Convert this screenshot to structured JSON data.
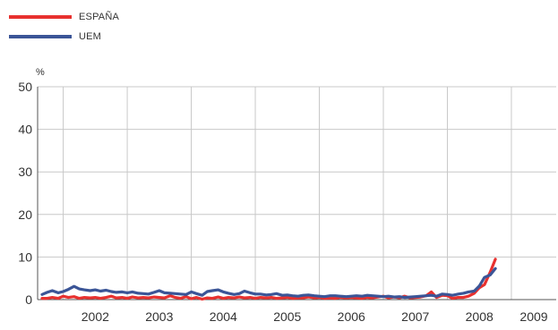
{
  "chart_data": {
    "type": "line",
    "title": "",
    "xlabel": "",
    "ylabel": "%",
    "ylim": [
      0,
      50
    ],
    "yticks": [
      "0",
      "10",
      "20",
      "30",
      "40",
      "50"
    ],
    "xlim": [
      2001.6,
      2009.7
    ],
    "xticks": [
      "2002",
      "2003",
      "2004",
      "2005",
      "2006",
      "2007",
      "2008",
      "2009"
    ],
    "grid": true,
    "legend_position": "top-left",
    "series": [
      {
        "name": "ESPAÑA",
        "color": "#e8312f",
        "x": [
          2001.67,
          2001.75,
          2001.83,
          2001.92,
          2002.0,
          2002.08,
          2002.17,
          2002.25,
          2002.33,
          2002.42,
          2002.5,
          2002.58,
          2002.67,
          2002.75,
          2002.83,
          2002.92,
          2003.0,
          2003.08,
          2003.17,
          2003.25,
          2003.33,
          2003.42,
          2003.5,
          2003.58,
          2003.67,
          2003.75,
          2003.83,
          2003.92,
          2004.0,
          2004.08,
          2004.17,
          2004.25,
          2004.33,
          2004.42,
          2004.5,
          2004.58,
          2004.67,
          2004.75,
          2004.83,
          2004.92,
          2005.0,
          2005.08,
          2005.17,
          2005.25,
          2005.33,
          2005.42,
          2005.5,
          2005.58,
          2005.67,
          2005.75,
          2005.83,
          2005.92,
          2006.0,
          2006.08,
          2006.17,
          2006.25,
          2006.33,
          2006.42,
          2006.5,
          2006.58,
          2006.67,
          2006.75,
          2006.83,
          2006.92,
          2007.0,
          2007.08,
          2007.17,
          2007.25,
          2007.33,
          2007.42,
          2007.5,
          2007.58,
          2007.67,
          2007.75,
          2007.83,
          2007.92,
          2008.0,
          2008.08,
          2008.17,
          2008.25,
          2008.33,
          2008.42,
          2008.5,
          2008.58,
          2008.67,
          2008.75
        ],
        "values": [
          0.3,
          0.3,
          0.5,
          0.3,
          0.8,
          0.5,
          0.7,
          0.3,
          0.5,
          0.4,
          0.5,
          0.3,
          0.5,
          0.8,
          0.4,
          0.5,
          0.3,
          0.6,
          0.4,
          0.5,
          0.4,
          0.6,
          0.5,
          0.4,
          0.9,
          0.5,
          0.3,
          0.7,
          0.2,
          0.5,
          0.1,
          0.4,
          0.3,
          0.6,
          0.3,
          0.5,
          0.4,
          0.6,
          0.4,
          0.5,
          0.3,
          0.5,
          0.4,
          0.5,
          0.3,
          0.4,
          0.5,
          0.3,
          0.4,
          0.4,
          0.6,
          0.4,
          0.5,
          0.3,
          0.4,
          0.3,
          0.5,
          0.4,
          0.5,
          0.4,
          0.3,
          0.5,
          0.4,
          0.6,
          0.8,
          0.4,
          0.6,
          0.4,
          0.8,
          0.4,
          0.5,
          0.6,
          0.9,
          1.8,
          0.5,
          1.0,
          0.9,
          0.3,
          0.5,
          0.5,
          0.8,
          1.5,
          2.8,
          3.5,
          6.5,
          9.5
        ]
      },
      {
        "name": "UEM",
        "color": "#3b5597",
        "x": [
          2001.67,
          2001.75,
          2001.83,
          2001.92,
          2002.0,
          2002.08,
          2002.17,
          2002.25,
          2002.33,
          2002.42,
          2002.5,
          2002.58,
          2002.67,
          2002.75,
          2002.83,
          2002.92,
          2003.0,
          2003.08,
          2003.17,
          2003.25,
          2003.33,
          2003.42,
          2003.5,
          2003.58,
          2003.67,
          2003.75,
          2003.83,
          2003.92,
          2004.0,
          2004.08,
          2004.17,
          2004.25,
          2004.33,
          2004.42,
          2004.5,
          2004.58,
          2004.67,
          2004.75,
          2004.83,
          2004.92,
          2005.0,
          2005.08,
          2005.17,
          2005.25,
          2005.33,
          2005.42,
          2005.5,
          2005.58,
          2005.67,
          2005.75,
          2005.83,
          2005.92,
          2006.0,
          2006.08,
          2006.17,
          2006.25,
          2006.33,
          2006.42,
          2006.5,
          2006.58,
          2006.67,
          2006.75,
          2006.83,
          2006.92,
          2007.0,
          2007.08,
          2007.17,
          2007.25,
          2007.33,
          2007.42,
          2007.5,
          2007.58,
          2007.67,
          2007.75,
          2007.83,
          2007.92,
          2008.0,
          2008.08,
          2008.17,
          2008.25,
          2008.33,
          2008.42,
          2008.5,
          2008.58,
          2008.67,
          2008.75
        ],
        "values": [
          1.2,
          1.7,
          2.1,
          1.6,
          1.9,
          2.4,
          3.1,
          2.5,
          2.3,
          2.1,
          2.3,
          2.0,
          2.2,
          1.9,
          1.7,
          1.8,
          1.6,
          1.8,
          1.5,
          1.4,
          1.3,
          1.7,
          2.1,
          1.6,
          1.5,
          1.4,
          1.3,
          1.2,
          1.8,
          1.4,
          1.0,
          1.9,
          2.1,
          2.3,
          1.8,
          1.5,
          1.2,
          1.4,
          2.0,
          1.6,
          1.3,
          1.3,
          1.1,
          1.2,
          1.4,
          1.0,
          1.1,
          0.9,
          0.8,
          1.0,
          1.1,
          0.9,
          0.8,
          0.7,
          0.9,
          0.9,
          0.8,
          0.7,
          0.8,
          0.9,
          0.8,
          1.0,
          0.9,
          0.8,
          0.7,
          0.8,
          0.6,
          0.7,
          0.5,
          0.6,
          0.7,
          0.8,
          0.9,
          1.0,
          0.8,
          1.3,
          1.2,
          1.0,
          1.3,
          1.5,
          1.8,
          2.0,
          3.2,
          5.2,
          5.8,
          7.3
        ]
      }
    ]
  }
}
